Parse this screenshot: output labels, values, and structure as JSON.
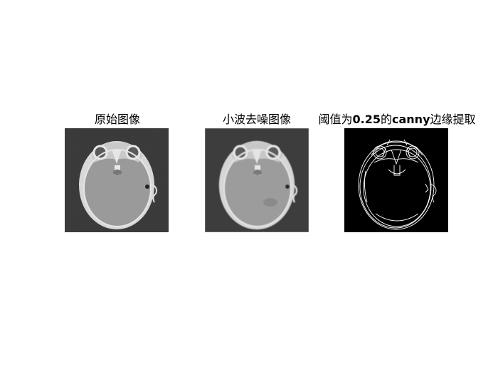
{
  "figure": {
    "panels": [
      {
        "title": "原始图像",
        "image": "grayscale CT brain slice with speckle noise",
        "colors": {
          "background": "#3a3a3a",
          "tissue": "#9a9a9a",
          "bone": "#e6e6e6"
        }
      },
      {
        "title": "小波去噪图像",
        "image": "denoised grayscale CT brain slice",
        "colors": {
          "background": "#3e3e3e",
          "tissue": "#9c9c9c",
          "bone": "#e4e4e4"
        }
      },
      {
        "title_parts": [
          "阈值为",
          "0.25",
          "的",
          "canny",
          "边缘提取"
        ],
        "image": "binary canny edge map on black background",
        "colors": {
          "background": "#000000",
          "edges": "#ffffff"
        }
      }
    ]
  }
}
